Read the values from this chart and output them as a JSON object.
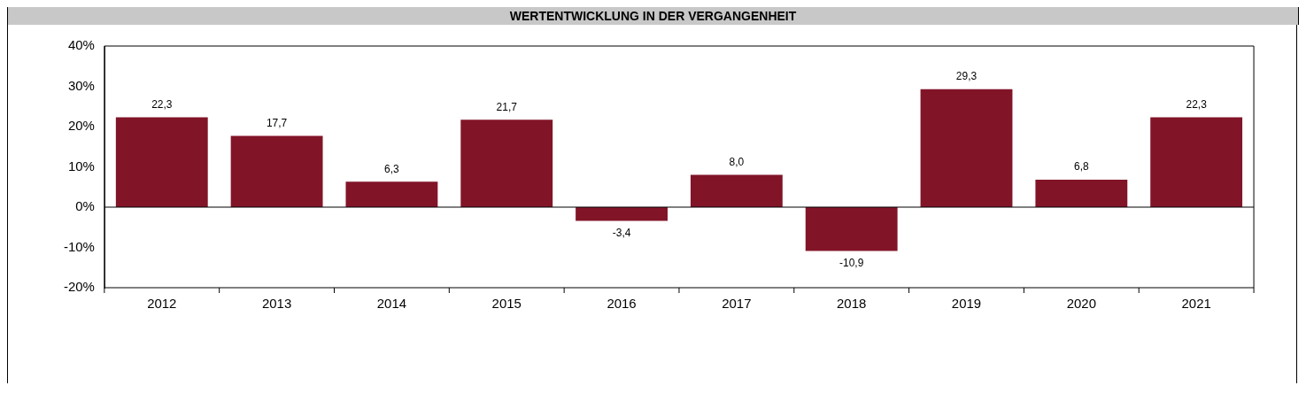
{
  "chart_data": {
    "type": "bar",
    "title": "WERTENTWICKLUNG IN DER VERGANGENHEIT",
    "categories": [
      "2012",
      "2013",
      "2014",
      "2015",
      "2016",
      "2017",
      "2018",
      "2019",
      "2020",
      "2021"
    ],
    "values": [
      22.3,
      17.7,
      6.3,
      21.7,
      -3.4,
      8.0,
      -10.9,
      29.3,
      6.8,
      22.3
    ],
    "value_labels": [
      "22,3",
      "17,7",
      "6,3",
      "21,7",
      "-3,4",
      "8,0",
      "-10,9",
      "29,3",
      "6,8",
      "22,3"
    ],
    "color": "#821428",
    "ylim": [
      -20,
      40
    ],
    "yticks": [
      {
        "value": -20,
        "label": "-20%"
      },
      {
        "value": -10,
        "label": "-10%"
      },
      {
        "value": 0,
        "label": "0%"
      },
      {
        "value": 10,
        "label": "10%"
      },
      {
        "value": 20,
        "label": "20%"
      },
      {
        "value": 30,
        "label": "30%"
      },
      {
        "value": 40,
        "label": "40%"
      }
    ],
    "legend": false
  }
}
